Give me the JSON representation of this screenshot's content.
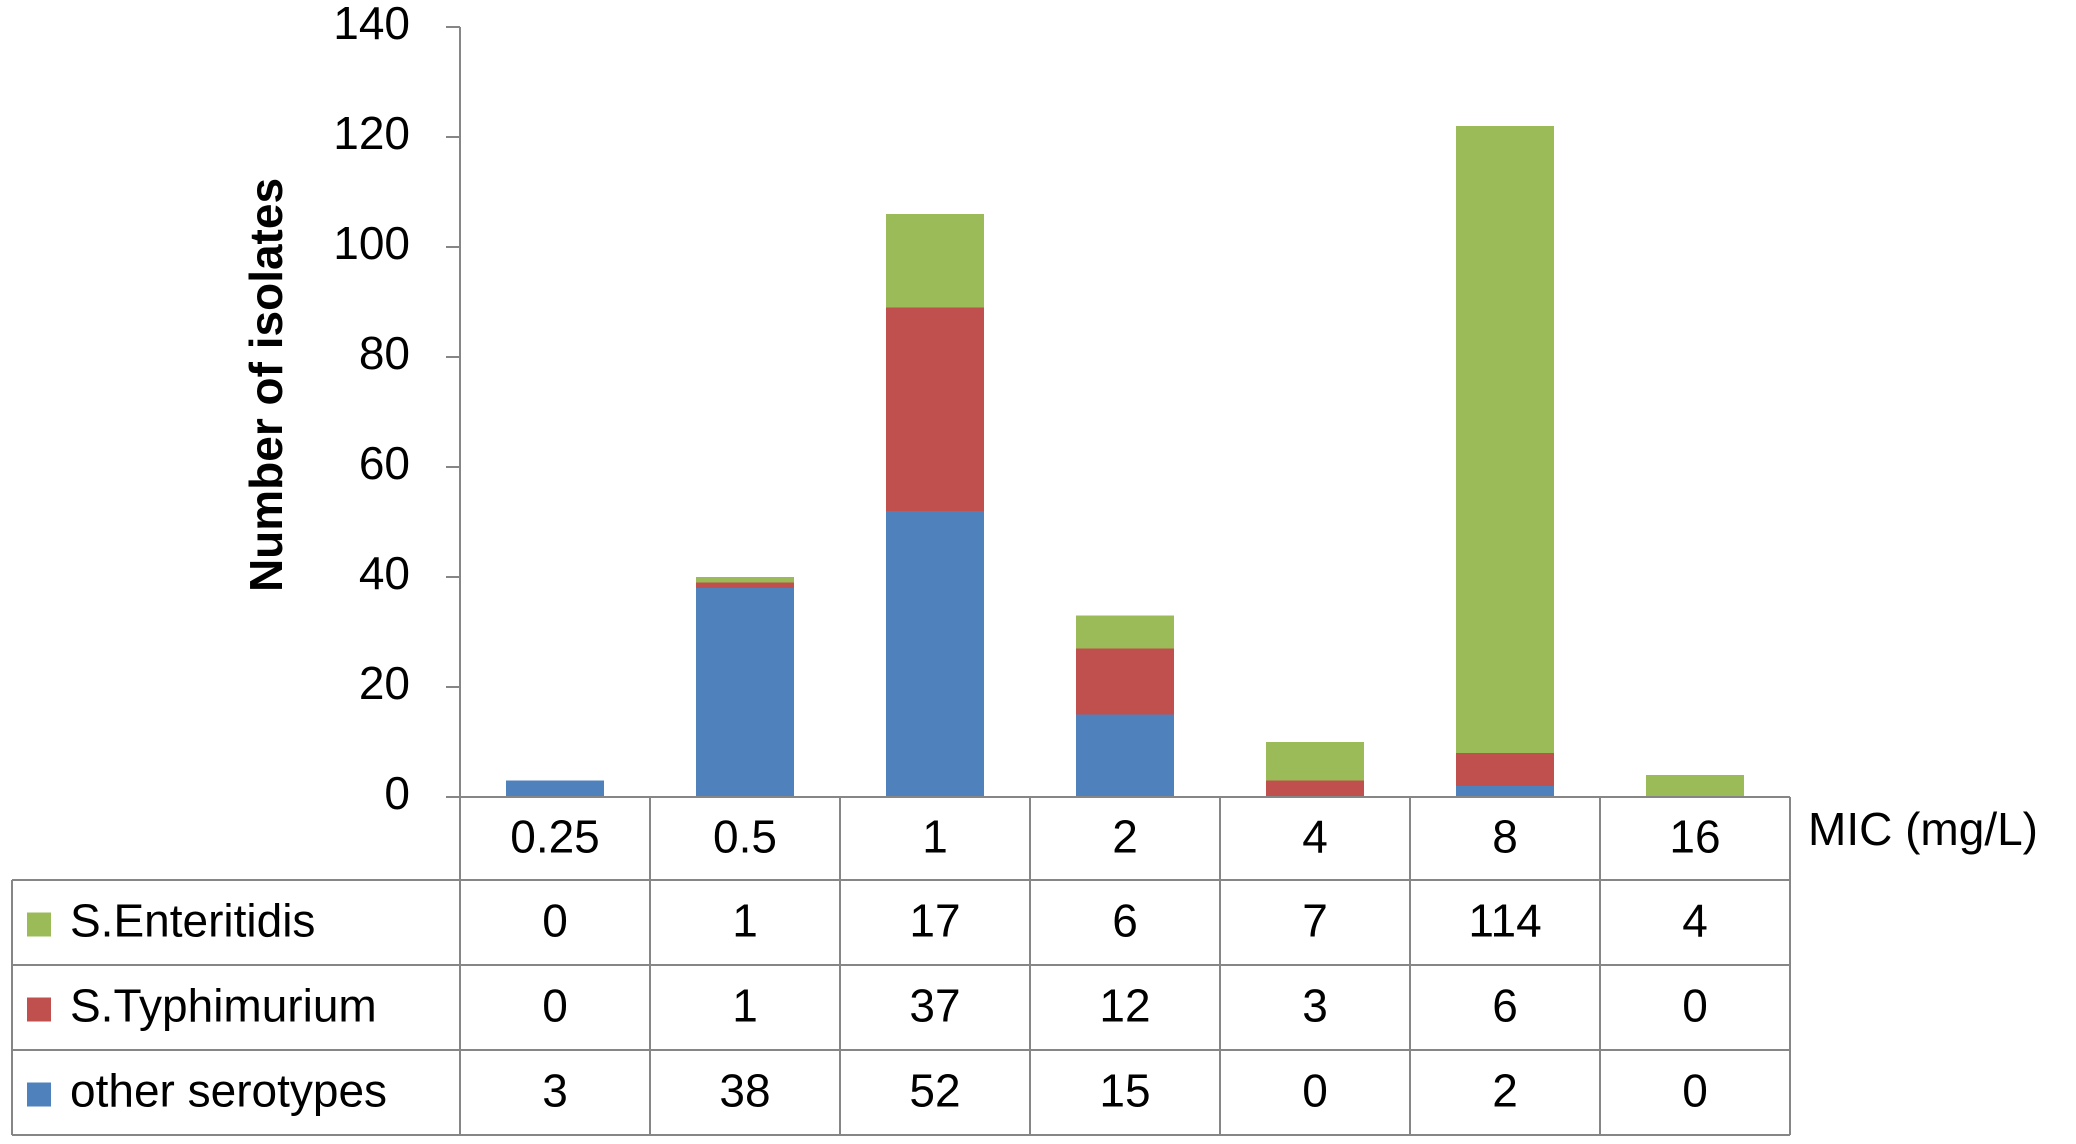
{
  "chart_data": {
    "type": "bar",
    "stacked": true,
    "categories": [
      "0.25",
      "0.5",
      "1",
      "2",
      "4",
      "8",
      "16"
    ],
    "series": [
      {
        "name": "other serotypes",
        "color": "#4F81BD",
        "values": [
          3,
          38,
          52,
          15,
          0,
          2,
          0
        ]
      },
      {
        "name": "S.Typhimurium",
        "color": "#C0504D",
        "values": [
          0,
          1,
          37,
          12,
          3,
          6,
          0
        ]
      },
      {
        "name": "S.Enteritidis",
        "color": "#9BBB59",
        "values": [
          0,
          1,
          17,
          6,
          7,
          114,
          4
        ]
      }
    ],
    "table_order": [
      "S.Enteritidis",
      "S.Typhimurium",
      "other serotypes"
    ],
    "xlabel": "MIC (mg/L)",
    "ylabel": "Number of isolates",
    "ylim": [
      0,
      140
    ],
    "yticks": [
      0,
      20,
      40,
      60,
      80,
      100,
      120,
      140
    ],
    "legend": "data-table",
    "grid": false
  }
}
